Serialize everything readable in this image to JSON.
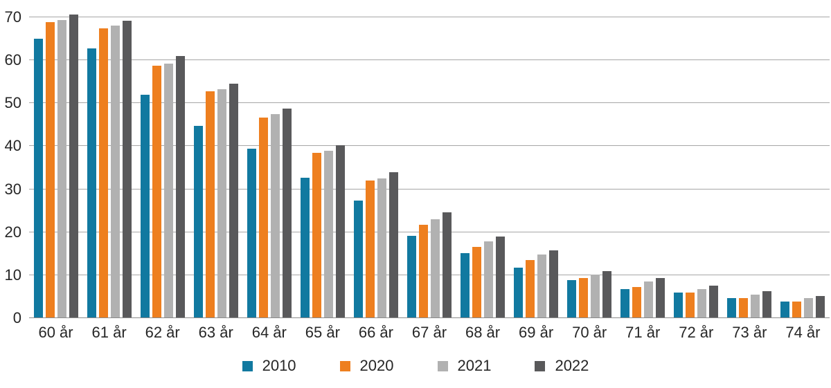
{
  "chart_data": {
    "type": "bar",
    "title": "",
    "xlabel": "",
    "ylabel": "",
    "ylim": [
      0,
      70
    ],
    "yticks": [
      0,
      10,
      20,
      30,
      40,
      50,
      60,
      70
    ],
    "grid": "horizontal",
    "legend_position": "bottom",
    "categories": [
      "60 år",
      "61 år",
      "62 år",
      "63 år",
      "64 år",
      "65 år",
      "66 år",
      "67 år",
      "68 år",
      "69 år",
      "70 år",
      "71 år",
      "72 år",
      "73 år",
      "74 år"
    ],
    "series": [
      {
        "name": "2010",
        "color": "#1179a0",
        "values": [
          65.0,
          62.8,
          52.0,
          44.7,
          39.4,
          32.6,
          27.4,
          19.1,
          15.2,
          11.8,
          8.9,
          6.7,
          5.9,
          4.6,
          3.8
        ]
      },
      {
        "name": "2020",
        "color": "#ee7f1f",
        "values": [
          68.9,
          67.5,
          58.8,
          52.8,
          46.6,
          38.5,
          32.1,
          21.7,
          16.6,
          13.5,
          9.3,
          7.2,
          6.0,
          4.7,
          3.8
        ]
      },
      {
        "name": "2021",
        "color": "#b1b1b1",
        "values": [
          69.3,
          68.0,
          59.2,
          53.2,
          47.5,
          38.9,
          32.5,
          23.0,
          17.8,
          14.8,
          10.1,
          8.5,
          6.8,
          5.5,
          4.7
        ]
      },
      {
        "name": "2022",
        "color": "#59595b",
        "values": [
          70.6,
          69.2,
          61.0,
          54.5,
          48.8,
          40.3,
          34.0,
          24.7,
          19.0,
          15.7,
          10.9,
          9.3,
          7.5,
          6.3,
          5.1
        ]
      }
    ]
  },
  "colors": {
    "background": "#ffffff",
    "gridline": "#a6a6a6",
    "axis_line": "#8a8a8a",
    "text": "#262626"
  }
}
